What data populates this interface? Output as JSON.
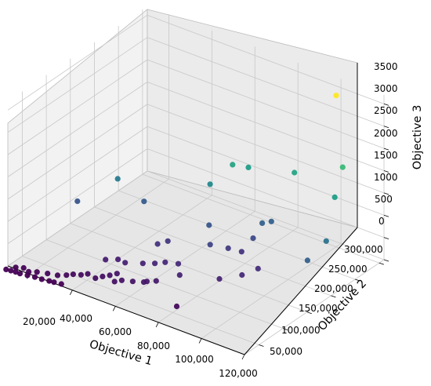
{
  "chart_data": {
    "type": "scatter3d",
    "xlabel": "Objective 1",
    "ylabel": "Objective 2",
    "zlabel": "Objective 3",
    "x_ticks": [
      "20,000",
      "40,000",
      "60,000",
      "80,000",
      "100,000",
      "120,000"
    ],
    "y_ticks": [
      "50,000",
      "100,000",
      "150,000",
      "200,000",
      "250,000",
      "300,000"
    ],
    "z_ticks": [
      "0",
      "500",
      "1000",
      "1500",
      "2000",
      "2500",
      "3000",
      "3500"
    ],
    "grid": true,
    "colormap": "viridis",
    "color_by": "z",
    "points": [
      {
        "x": 11000,
        "y": 12000,
        "z": 0
      },
      {
        "x": 13000,
        "y": 13000,
        "z": 0
      },
      {
        "x": 15000,
        "y": 14000,
        "z": 0
      },
      {
        "x": 17000,
        "y": 14000,
        "z": 0
      },
      {
        "x": 20000,
        "y": 16000,
        "z": 0
      },
      {
        "x": 23000,
        "y": 18000,
        "z": 0
      },
      {
        "x": 26000,
        "y": 19000,
        "z": 0
      },
      {
        "x": 29000,
        "y": 21000,
        "z": 0
      },
      {
        "x": 31000,
        "y": 22000,
        "z": 0
      },
      {
        "x": 34000,
        "y": 24000,
        "z": 0
      },
      {
        "x": 13000,
        "y": 23000,
        "z": 0
      },
      {
        "x": 16000,
        "y": 26000,
        "z": 20
      },
      {
        "x": 19000,
        "y": 23000,
        "z": 10
      },
      {
        "x": 22000,
        "y": 27000,
        "z": 30
      },
      {
        "x": 26000,
        "y": 31000,
        "z": 40
      },
      {
        "x": 30000,
        "y": 34000,
        "z": 50
      },
      {
        "x": 33000,
        "y": 39000,
        "z": 70
      },
      {
        "x": 35000,
        "y": 44000,
        "z": 90
      },
      {
        "x": 38000,
        "y": 47000,
        "z": 110
      },
      {
        "x": 40000,
        "y": 52000,
        "z": 130
      },
      {
        "x": 44000,
        "y": 50000,
        "z": 120
      },
      {
        "x": 46000,
        "y": 56000,
        "z": 150
      },
      {
        "x": 48000,
        "y": 62000,
        "z": 170
      },
      {
        "x": 50000,
        "y": 68000,
        "z": 200
      },
      {
        "x": 52000,
        "y": 54000,
        "z": 160
      },
      {
        "x": 54000,
        "y": 60000,
        "z": 180
      },
      {
        "x": 58000,
        "y": 65000,
        "z": 190
      },
      {
        "x": 62000,
        "y": 70000,
        "z": 210
      },
      {
        "x": 63000,
        "y": 72000,
        "z": 230
      },
      {
        "x": 66000,
        "y": 78000,
        "z": 250
      },
      {
        "x": 80000,
        "y": 58000,
        "z": 80
      },
      {
        "x": 42000,
        "y": 80000,
        "z": 280
      },
      {
        "x": 46000,
        "y": 88000,
        "z": 300
      },
      {
        "x": 50000,
        "y": 85000,
        "z": 320
      },
      {
        "x": 56000,
        "y": 95000,
        "z": 340
      },
      {
        "x": 60000,
        "y": 102000,
        "z": 360
      },
      {
        "x": 63000,
        "y": 110000,
        "z": 380
      },
      {
        "x": 68000,
        "y": 115000,
        "z": 400
      },
      {
        "x": 72000,
        "y": 100000,
        "z": 330
      },
      {
        "x": 55000,
        "y": 130000,
        "z": 500
      },
      {
        "x": 58000,
        "y": 138000,
        "z": 560
      },
      {
        "x": 86000,
        "y": 120000,
        "z": 350
      },
      {
        "x": 92000,
        "y": 140000,
        "z": 400
      },
      {
        "x": 95000,
        "y": 160000,
        "z": 450
      },
      {
        "x": 84000,
        "y": 175000,
        "z": 520
      },
      {
        "x": 80000,
        "y": 165000,
        "z": 600
      },
      {
        "x": 75000,
        "y": 150000,
        "z": 700
      },
      {
        "x": 20000,
        "y": 120000,
        "z": 900
      },
      {
        "x": 42000,
        "y": 160000,
        "z": 1000
      },
      {
        "x": 32000,
        "y": 150000,
        "z": 1400
      },
      {
        "x": 70000,
        "y": 170000,
        "z": 900
      },
      {
        "x": 86000,
        "y": 190000,
        "z": 750
      },
      {
        "x": 88000,
        "y": 200000,
        "z": 1050
      },
      {
        "x": 90000,
        "y": 210000,
        "z": 1050
      },
      {
        "x": 66000,
        "y": 190000,
        "z": 1600
      },
      {
        "x": 72000,
        "y": 210000,
        "z": 2000
      },
      {
        "x": 76000,
        "y": 225000,
        "z": 1900
      },
      {
        "x": 94000,
        "y": 240000,
        "z": 2000
      },
      {
        "x": 118000,
        "y": 160000,
        "z": 1050
      },
      {
        "x": 112000,
        "y": 260000,
        "z": 2300
      },
      {
        "x": 115000,
        "y": 230000,
        "z": 1900
      },
      {
        "x": 120000,
        "y": 190000,
        "z": 1300
      },
      {
        "x": 100000,
        "y": 300000,
        "z": 3400
      }
    ]
  }
}
